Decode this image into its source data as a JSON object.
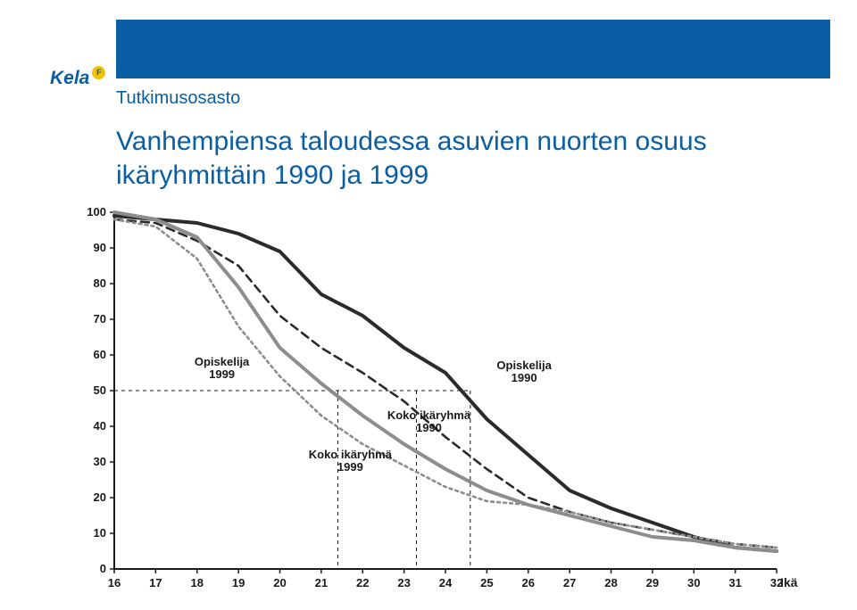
{
  "header": {
    "brand": "Kela",
    "brand_badge": "F",
    "department": "Tutkimusosasto",
    "title": "Vanhempiensa taloudessa asuvien nuorten osuus ikäryhmittäin 1990 ja 1999"
  },
  "chart": {
    "type": "line",
    "ylabel": "%",
    "xlabel": "Ikä",
    "ylim": [
      0,
      100
    ],
    "ytick_step": 10,
    "xlim": [
      16,
      32
    ],
    "xtick_step": 1,
    "background_color": "#ffffff",
    "axis_color": "#1a1a1a",
    "ref_line_color": "#1a1a1a",
    "ref_line_dash": "4 4",
    "ref_lines": [
      {
        "x": 21.4,
        "y": 50
      },
      {
        "x": 23.3,
        "y": 50
      },
      {
        "x": 24.6,
        "y": 50
      }
    ],
    "series": [
      {
        "name": "Opiskelija 1990",
        "color": "#2b2b2b",
        "width": 4,
        "dash": "none",
        "label_xy": [
          25.9,
          56
        ],
        "data": [
          [
            16,
            99
          ],
          [
            17,
            98
          ],
          [
            18,
            97
          ],
          [
            19,
            94
          ],
          [
            20,
            89
          ],
          [
            21,
            77
          ],
          [
            22,
            71
          ],
          [
            23,
            62
          ],
          [
            24,
            55
          ],
          [
            25,
            42
          ],
          [
            26,
            32
          ],
          [
            27,
            22
          ],
          [
            28,
            17
          ],
          [
            29,
            13
          ],
          [
            30,
            9
          ],
          [
            31,
            6
          ],
          [
            32,
            5
          ]
        ]
      },
      {
        "name": "Koko ikäryhmä 1990",
        "color": "#2b2b2b",
        "width": 2.6,
        "dash": "9 6",
        "label_xy": [
          23.6,
          42
        ],
        "data": [
          [
            16,
            98
          ],
          [
            17,
            97
          ],
          [
            18,
            92
          ],
          [
            19,
            85
          ],
          [
            20,
            71
          ],
          [
            21,
            62
          ],
          [
            22,
            55
          ],
          [
            23,
            47
          ],
          [
            24,
            37
          ],
          [
            25,
            28
          ],
          [
            26,
            20
          ],
          [
            27,
            16
          ],
          [
            28,
            13
          ],
          [
            29,
            11
          ],
          [
            30,
            9
          ],
          [
            31,
            7
          ],
          [
            32,
            6
          ]
        ]
      },
      {
        "name": "Opiskelija 1999",
        "color": "#8d8d8d",
        "width": 4,
        "dash": "none",
        "label_xy": [
          18.6,
          57
        ],
        "data": [
          [
            16,
            100
          ],
          [
            17,
            98
          ],
          [
            18,
            93
          ],
          [
            19,
            79
          ],
          [
            20,
            62
          ],
          [
            21,
            52
          ],
          [
            22,
            43
          ],
          [
            23,
            35
          ],
          [
            24,
            28
          ],
          [
            25,
            22
          ],
          [
            26,
            18
          ],
          [
            27,
            15
          ],
          [
            28,
            12
          ],
          [
            29,
            9
          ],
          [
            30,
            8
          ],
          [
            31,
            6
          ],
          [
            32,
            5
          ]
        ]
      },
      {
        "name": "Koko ikäryhmä 1999",
        "color": "#8d8d8d",
        "width": 2.6,
        "dash": "3 4",
        "label_xy": [
          21.7,
          31
        ],
        "data": [
          [
            16,
            98
          ],
          [
            17,
            96
          ],
          [
            18,
            87
          ],
          [
            19,
            68
          ],
          [
            20,
            54
          ],
          [
            21,
            43
          ],
          [
            22,
            35
          ],
          [
            23,
            29
          ],
          [
            24,
            23
          ],
          [
            25,
            19
          ],
          [
            26,
            18
          ],
          [
            27,
            16
          ],
          [
            28,
            13
          ],
          [
            29,
            11
          ],
          [
            30,
            9
          ],
          [
            31,
            7
          ],
          [
            32,
            6
          ]
        ]
      }
    ]
  }
}
